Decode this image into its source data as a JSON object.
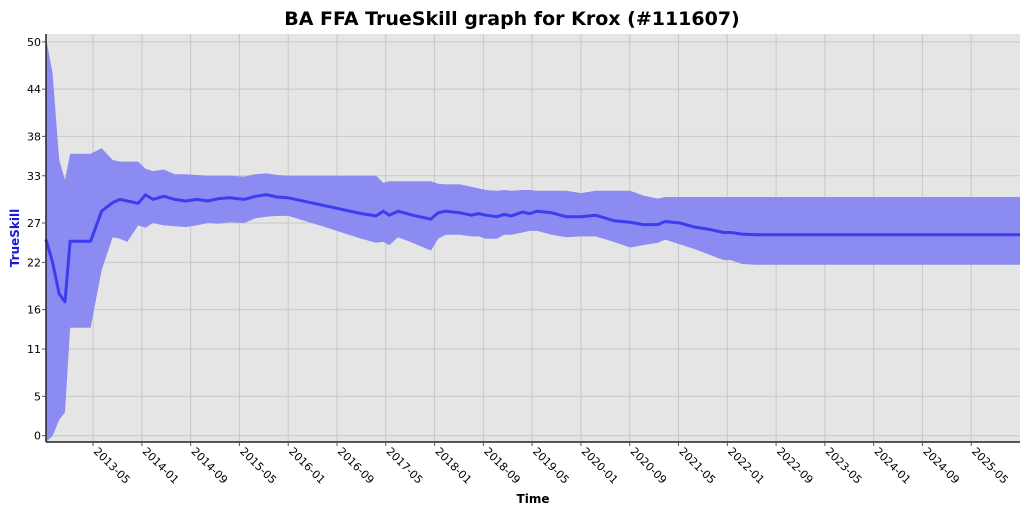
{
  "chart_data": {
    "type": "line",
    "title": "BA FFA TrueSkill graph for Krox (#111607)",
    "xlabel": "Time",
    "ylabel": "TrueSkill",
    "ylim": [
      -0.8,
      51
    ],
    "y_ticks": [
      "0",
      "5",
      "11",
      "16",
      "22",
      "27",
      "33",
      "38",
      "44",
      "50"
    ],
    "y_tick_values": [
      0,
      5,
      11,
      16,
      22,
      27,
      33,
      38,
      44,
      50
    ],
    "x_ticks": [
      "2013-05",
      "2014-01",
      "2014-09",
      "2015-05",
      "2016-01",
      "2016-09",
      "2017-05",
      "2018-01",
      "2018-09",
      "2019-05",
      "2020-01",
      "2020-09",
      "2021-05",
      "2022-01",
      "2022-09",
      "2023-05",
      "2024-01",
      "2024-09",
      "2025-05"
    ],
    "x_tick_values": [
      2013.333,
      2014.0,
      2014.667,
      2015.333,
      2016.0,
      2016.667,
      2017.333,
      2018.0,
      2018.667,
      2019.333,
      2020.0,
      2020.667,
      2021.333,
      2022.0,
      2022.667,
      2023.333,
      2024.0,
      2024.667,
      2025.333
    ],
    "xlim": [
      2012.69,
      2026.0
    ],
    "grid": true,
    "legend": "none",
    "colors": {
      "line": "#3d3df0",
      "band": "#8b8bf2",
      "plot_bg": "#e5e5e5",
      "grid": "#c8c8c8"
    },
    "series": [
      {
        "x": [
          2012.69,
          2012.78,
          2012.87,
          2012.95,
          2013.02,
          2013.3,
          2013.45,
          2013.6,
          2013.7,
          2013.8,
          2013.95,
          2014.05,
          2014.15,
          2014.3,
          2014.45,
          2014.6,
          2014.75,
          2014.9,
          2015.05,
          2015.2,
          2015.4,
          2015.55,
          2015.7,
          2015.85,
          2016.0,
          2016.5,
          2017.0,
          2017.2,
          2017.3,
          2017.38,
          2017.5,
          2017.7,
          2017.95,
          2018.05,
          2018.15,
          2018.35,
          2018.5,
          2018.6,
          2018.7,
          2018.85,
          2018.95,
          2019.05,
          2019.2,
          2019.3,
          2019.4,
          2019.6,
          2019.8,
          2020.0,
          2020.2,
          2020.45,
          2020.67,
          2020.85,
          2021.05,
          2021.15,
          2021.35,
          2021.55,
          2021.75,
          2021.95,
          2022.05,
          2022.2,
          2022.4,
          2023.0,
          2024.0,
          2025.0,
          2026.0
        ],
        "y": [
          24.9,
          22.0,
          18.0,
          17.0,
          24.7,
          24.7,
          28.5,
          29.6,
          30.0,
          29.8,
          29.5,
          30.6,
          30.0,
          30.4,
          30.0,
          29.8,
          30.0,
          29.8,
          30.1,
          30.2,
          30.0,
          30.4,
          30.6,
          30.3,
          30.2,
          29.2,
          28.2,
          27.9,
          28.5,
          28.0,
          28.5,
          28.0,
          27.5,
          28.3,
          28.5,
          28.3,
          28.0,
          28.2,
          28.0,
          27.8,
          28.1,
          27.9,
          28.4,
          28.2,
          28.5,
          28.3,
          27.8,
          27.8,
          28.0,
          27.3,
          27.1,
          26.8,
          26.8,
          27.2,
          27.0,
          26.5,
          26.2,
          25.8,
          25.8,
          25.6,
          25.5,
          25.5,
          25.5,
          25.5,
          25.5
        ],
        "upper": [
          50.5,
          46.0,
          35.0,
          32.5,
          35.8,
          35.8,
          36.5,
          35.0,
          34.8,
          34.8,
          34.8,
          33.9,
          33.6,
          33.8,
          33.2,
          33.2,
          33.1,
          33.0,
          33.0,
          33.0,
          32.9,
          33.2,
          33.3,
          33.1,
          33.0,
          33.0,
          33.0,
          33.0,
          32.1,
          32.3,
          32.3,
          32.3,
          32.3,
          32.0,
          31.9,
          31.9,
          31.6,
          31.4,
          31.2,
          31.1,
          31.2,
          31.1,
          31.2,
          31.2,
          31.1,
          31.1,
          31.1,
          30.8,
          31.1,
          31.1,
          31.1,
          30.5,
          30.1,
          30.3,
          30.3,
          30.3,
          30.3,
          30.3,
          30.3,
          30.3,
          30.3,
          30.3,
          30.3,
          30.3,
          30.3
        ],
        "lower": [
          -0.8,
          0.0,
          2.0,
          3.0,
          13.7,
          13.7,
          21.0,
          25.2,
          25.0,
          24.6,
          26.7,
          26.4,
          27.0,
          26.7,
          26.6,
          26.5,
          26.7,
          27.0,
          26.9,
          27.1,
          27.0,
          27.6,
          27.8,
          27.9,
          27.9,
          26.5,
          25.0,
          24.5,
          24.6,
          24.2,
          25.2,
          24.5,
          23.5,
          25.0,
          25.5,
          25.5,
          25.3,
          25.3,
          25.0,
          25.0,
          25.5,
          25.5,
          25.8,
          26.0,
          26.0,
          25.5,
          25.2,
          25.3,
          25.3,
          24.6,
          23.9,
          24.2,
          24.5,
          24.9,
          24.3,
          23.7,
          23.0,
          22.3,
          22.3,
          21.8,
          21.7,
          21.7,
          21.7,
          21.7,
          21.7
        ]
      }
    ]
  }
}
